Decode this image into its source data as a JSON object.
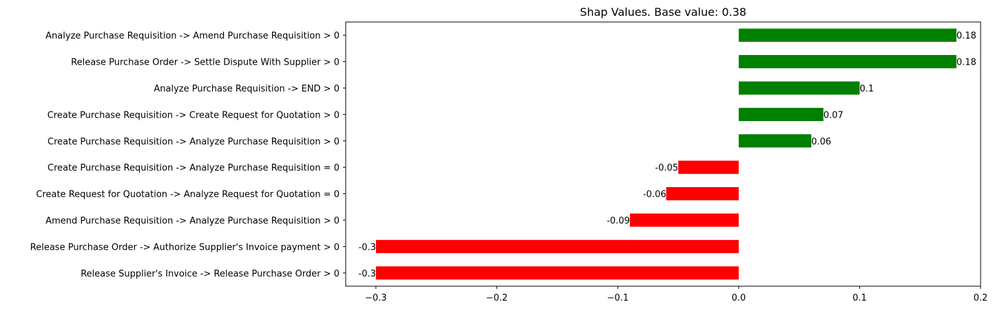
{
  "chart_data": {
    "type": "bar",
    "orientation": "horizontal",
    "title": "Shap Values. Base value: 0.38",
    "xlabel": "",
    "ylabel": "",
    "xlim": [
      -0.325,
      0.2
    ],
    "xticks": [
      -0.3,
      -0.2,
      -0.1,
      0.0,
      0.1,
      0.2
    ],
    "xtick_labels": [
      "−0.3",
      "−0.2",
      "−0.1",
      "0.0",
      "0.1",
      "0.2"
    ],
    "grid": false,
    "colors": {
      "positive": "#008000",
      "negative": "#ff0000"
    },
    "categories": [
      "Analyze Purchase Requisition -> Amend Purchase Requisition > 0",
      "Release Purchase Order -> Settle Dispute With Supplier > 0",
      "Analyze Purchase Requisition -> END > 0",
      "Create Purchase Requisition -> Create Request for Quotation > 0",
      "Create Purchase Requisition -> Analyze Purchase Requisition > 0",
      "Create Purchase Requisition -> Analyze Purchase Requisition = 0",
      "Create Request for Quotation -> Analyze Request for Quotation = 0",
      "Amend Purchase Requisition -> Analyze Purchase Requisition > 0",
      "Release Purchase Order -> Authorize Supplier's Invoice payment > 0",
      "Release Supplier's Invoice -> Release Purchase Order > 0"
    ],
    "values": [
      0.18,
      0.18,
      0.1,
      0.07,
      0.06,
      -0.05,
      -0.06,
      -0.09,
      -0.3,
      -0.3
    ],
    "value_labels": [
      "0.18",
      "0.18",
      "0.1",
      "0.07",
      "0.06",
      "-0.05",
      "-0.06",
      "-0.09",
      "-0.3",
      "-0.3"
    ]
  }
}
